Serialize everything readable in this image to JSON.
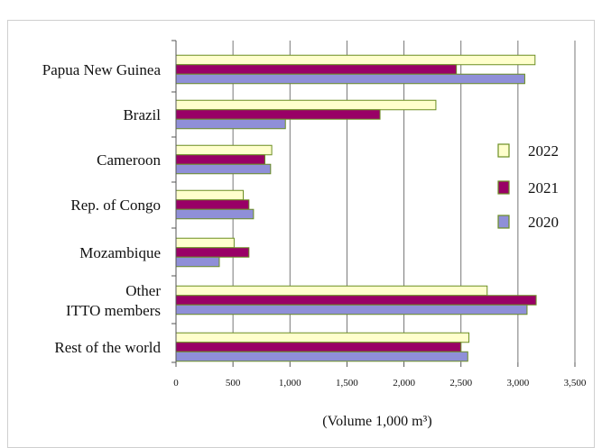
{
  "chart_data": {
    "type": "bar",
    "orientation": "horizontal",
    "categories": [
      "Papua New Guinea",
      "Brazil",
      "Cameroon",
      "Rep. of Congo",
      "Mozambique",
      "Other\nITTO members",
      "Rest of the world"
    ],
    "series": [
      {
        "name": "2022",
        "color": "#ffffcc",
        "values": [
          3150,
          2280,
          840,
          590,
          510,
          2730,
          2570
        ]
      },
      {
        "name": "2021",
        "color": "#990066",
        "values": [
          2460,
          1790,
          780,
          640,
          640,
          3160,
          2500
        ]
      },
      {
        "name": "2020",
        "color": "#8f8fd8",
        "values": [
          3060,
          960,
          830,
          680,
          380,
          3080,
          2560
        ]
      }
    ],
    "xlim": [
      0,
      3500
    ],
    "x_ticks": [
      0,
      500,
      1000,
      1500,
      2000,
      2500,
      3000,
      3500
    ],
    "x_tick_labels": [
      "0",
      "500",
      "1,000",
      "1,500",
      "2,000",
      "2,500",
      "3,000",
      "3,500"
    ],
    "xlabel": "(Volume 1,000 m³)",
    "legend_order": [
      "2022",
      "2021",
      "2020"
    ],
    "legend_position": "right",
    "grid": "vertical",
    "bar_edge_color": "#6b8e23"
  }
}
